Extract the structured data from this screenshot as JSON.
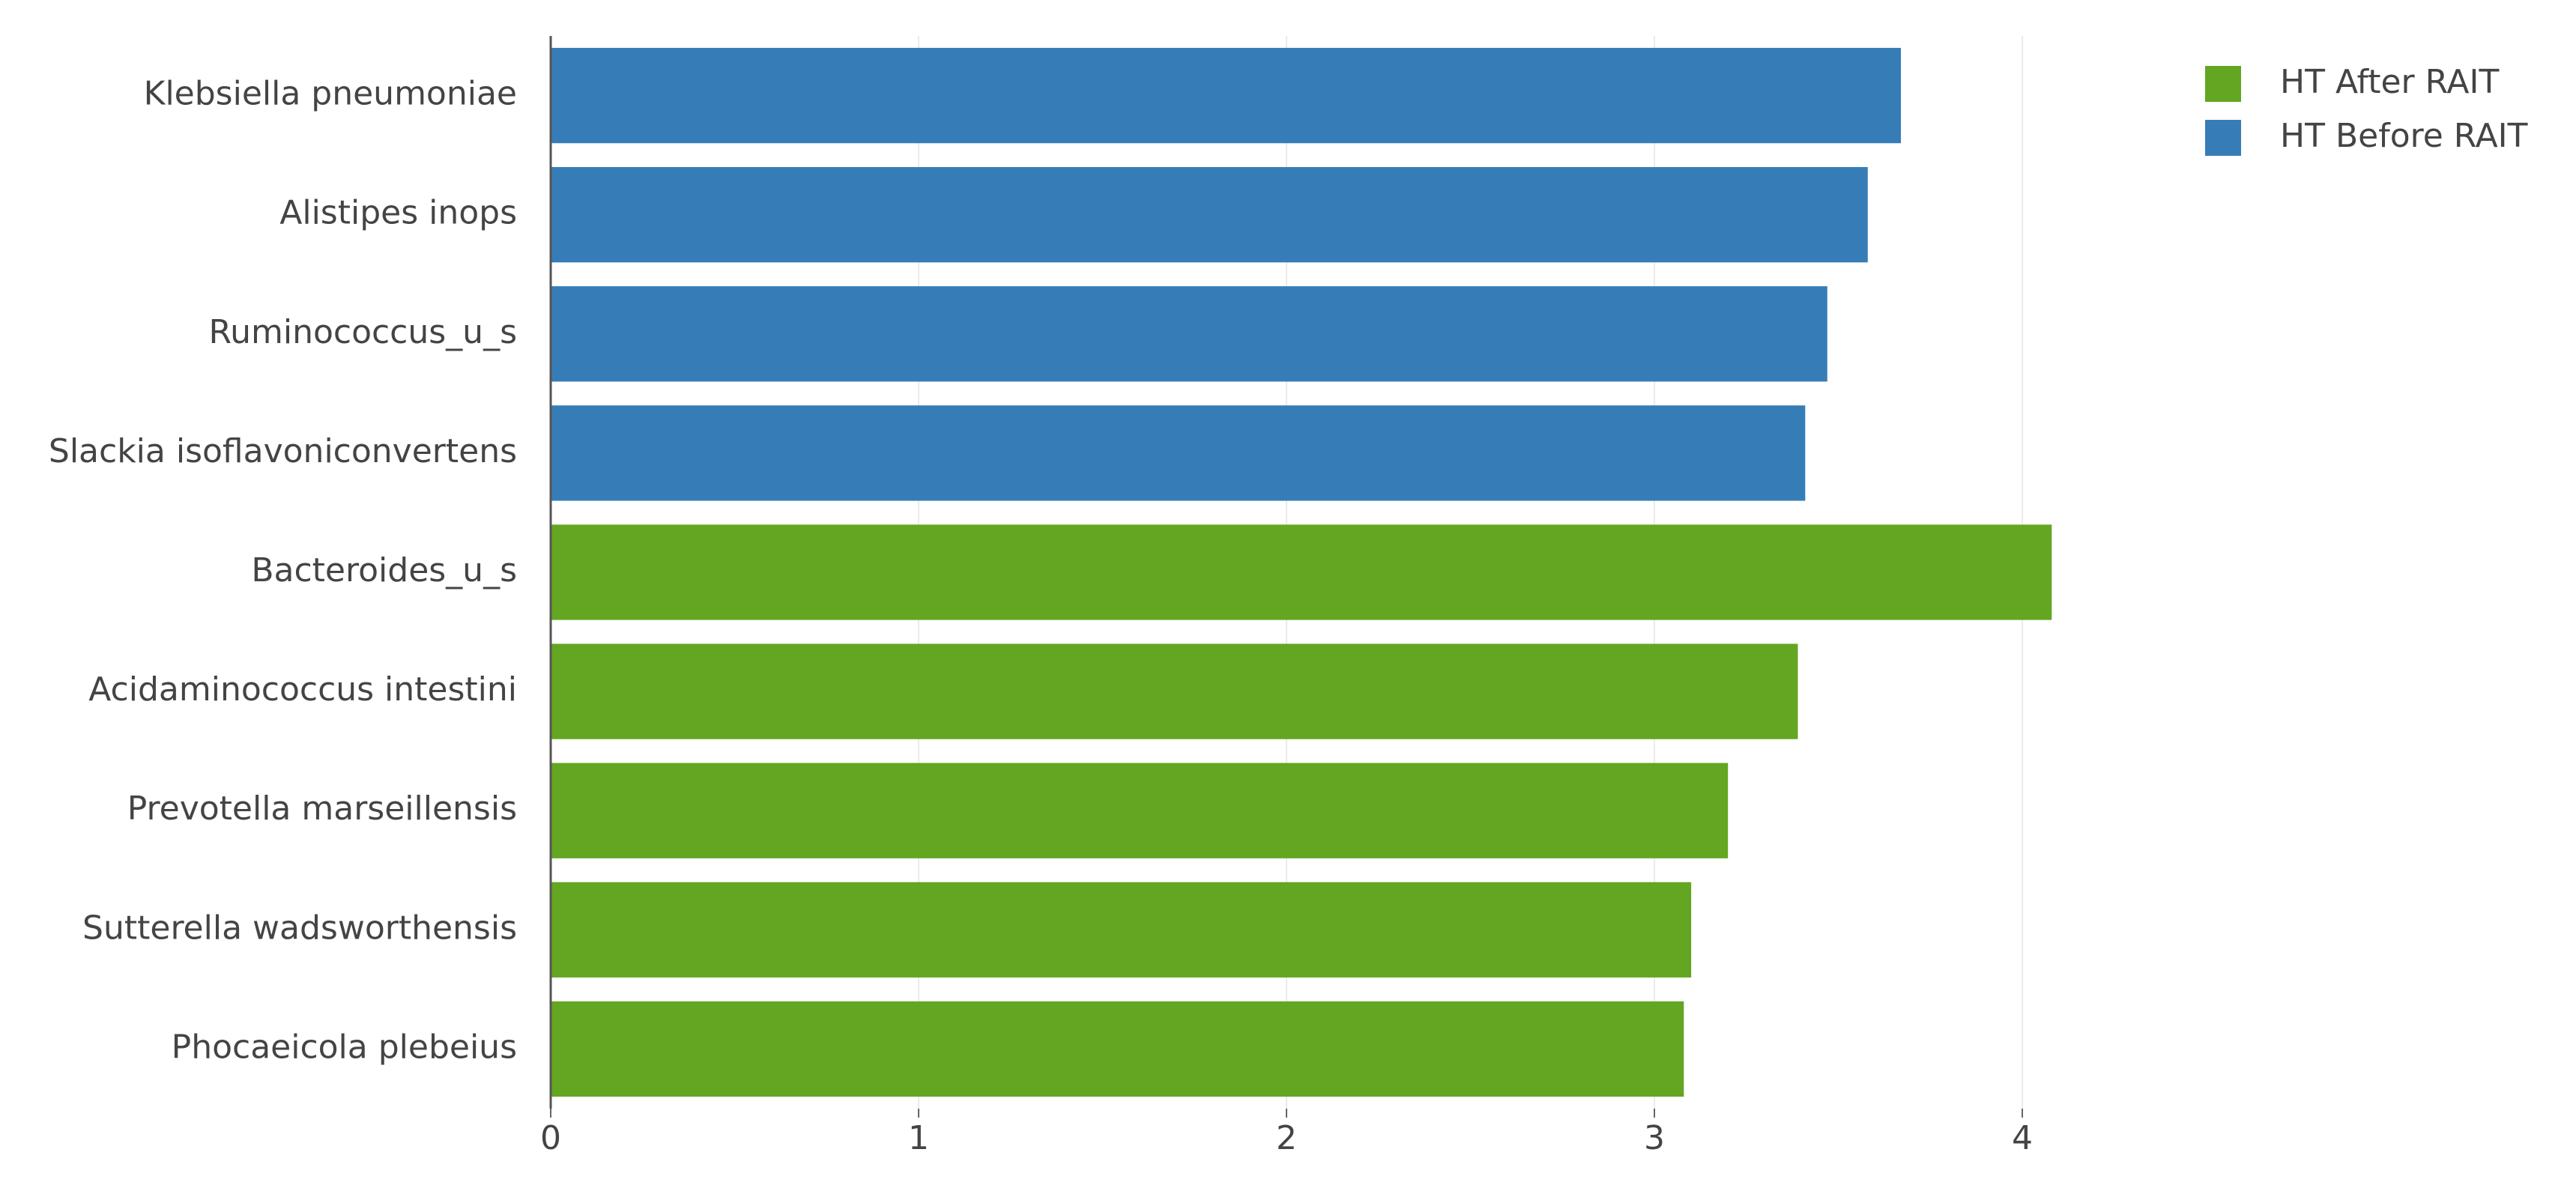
{
  "chart_data": {
    "type": "bar",
    "orientation": "horizontal",
    "categories": [
      "Klebsiella pneumoniae",
      "Alistipes inops",
      "Ruminococcus_u_s",
      "Slackia isoflavoniconvertens",
      "Bacteroides_u_s",
      "Acidaminococcus intestini",
      "Prevotella marseillensis",
      "Sutterella wadsworthensis",
      "Phocaeicola plebeius"
    ],
    "series": [
      {
        "name": "HT After RAIT",
        "color": "#63a621",
        "values": [
          null,
          null,
          null,
          null,
          4.08,
          3.39,
          3.2,
          3.1,
          3.08
        ]
      },
      {
        "name": "HT Before RAIT",
        "color": "#367db8",
        "values": [
          3.67,
          3.58,
          3.47,
          3.41,
          null,
          null,
          null,
          null,
          null
        ]
      }
    ],
    "xlim": [
      0,
      4.3
    ],
    "xticks": [
      0,
      1,
      2,
      3,
      4
    ],
    "grid": true,
    "legend": "top-right"
  }
}
